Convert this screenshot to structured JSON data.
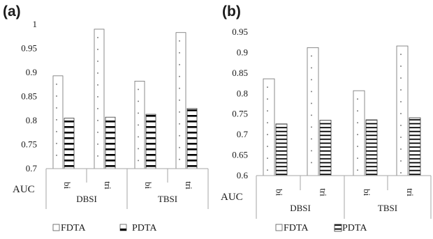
{
  "chart_data": [
    {
      "panel": "(a)",
      "type": "bar",
      "ylabel": "AUC",
      "ylim": [
        0.7,
        1.0
      ],
      "yticks": [
        "0.7",
        "0.75",
        "0.8",
        "0.85",
        "0.9",
        "0.95",
        "1"
      ],
      "groups": [
        {
          "label": "DBSI",
          "categories": [
            "bi",
            "tri"
          ]
        },
        {
          "label": "TBSI",
          "categories": [
            "bi",
            "tri"
          ]
        }
      ],
      "categories": [
        "bi",
        "tri",
        "bi",
        "tri"
      ],
      "series": [
        {
          "name": "FDTA",
          "values": [
            0.893,
            0.99,
            0.882,
            0.983
          ]
        },
        {
          "name": "PDTA",
          "values": [
            0.805,
            0.807,
            0.813,
            0.825
          ]
        }
      ],
      "legend": {
        "placement": "bottom",
        "FDTA": "FDTA",
        "PDTA": "PDTA"
      }
    },
    {
      "panel": "(b)",
      "type": "bar",
      "ylabel": "AUC",
      "ylim": [
        0.6,
        0.95
      ],
      "yticks": [
        "0.6",
        "0.65",
        "0.7",
        "0.75",
        "0.8",
        "0.85",
        "0.9",
        "0.95"
      ],
      "groups": [
        {
          "label": "DBSI",
          "categories": [
            "bi",
            "tri"
          ]
        },
        {
          "label": "TBSI",
          "categories": [
            "bi",
            "tri"
          ]
        }
      ],
      "categories": [
        "bi",
        "tri",
        "bi",
        "tri"
      ],
      "series": [
        {
          "name": "FDTA",
          "values": [
            0.836,
            0.912,
            0.807,
            0.916
          ]
        },
        {
          "name": "PDTA",
          "values": [
            0.726,
            0.735,
            0.736,
            0.741
          ]
        }
      ],
      "legend": {
        "placement": "bottom",
        "FDTA": "FDTA",
        "PDTA": "PDTA"
      }
    }
  ],
  "colors": {
    "fdta_fill": "#ffffff",
    "pdta_stripe": "#000000",
    "axis": "#a6a6a6",
    "dots": "#7f7f7f"
  }
}
